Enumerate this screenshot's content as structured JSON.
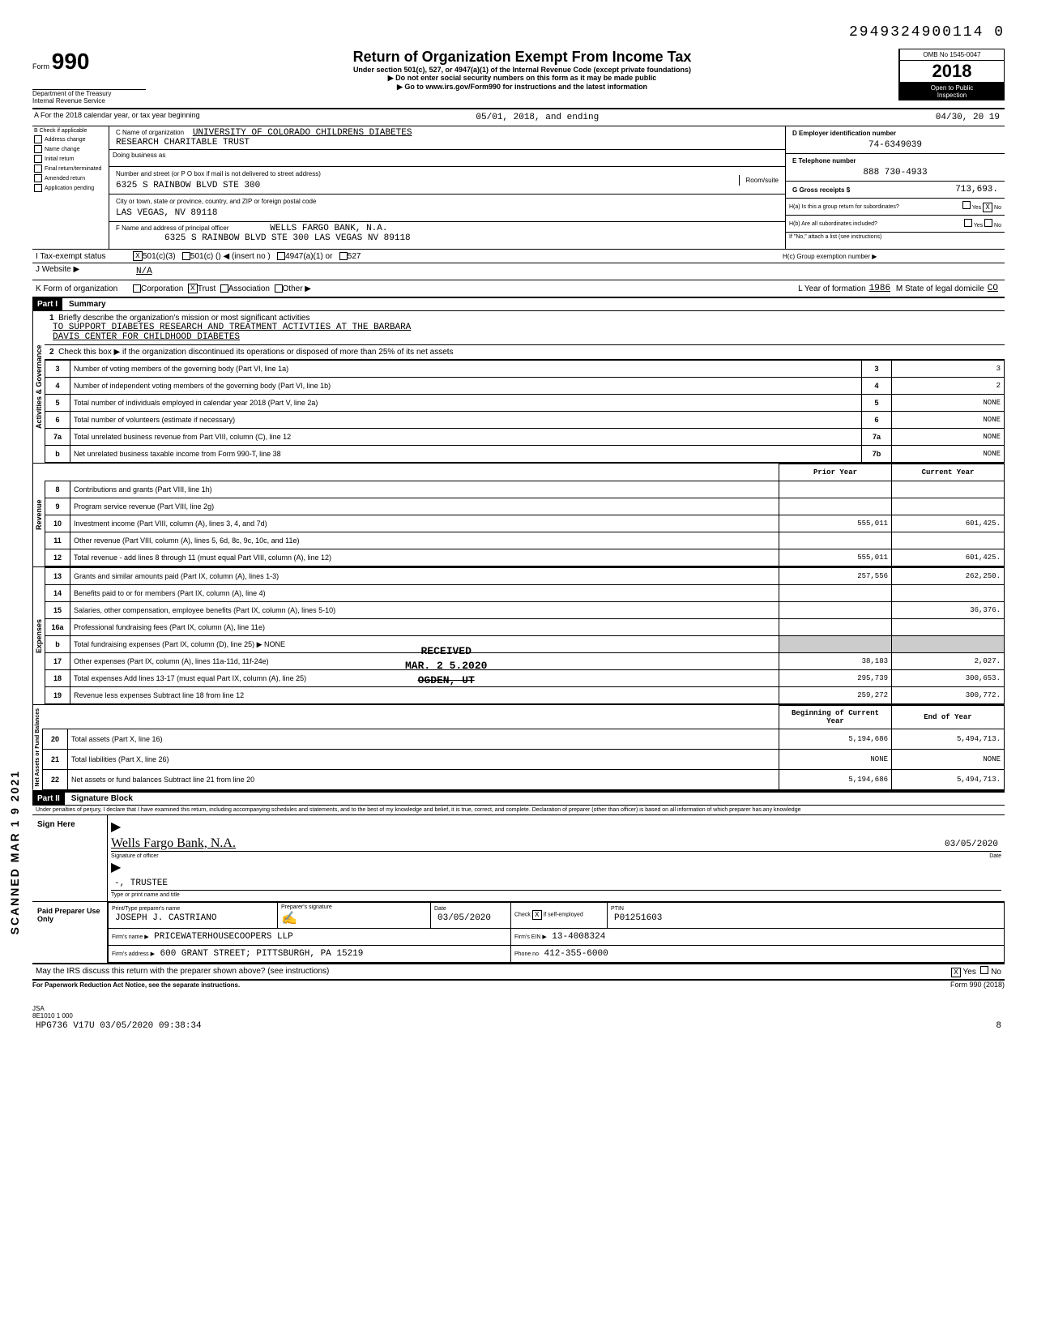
{
  "header_number": "2949324900114 0",
  "form": {
    "number": "990",
    "label": "Form",
    "dept1": "Department of the Treasury",
    "dept2": "Internal Revenue Service",
    "title": "Return of Organization Exempt From Income Tax",
    "sub1": "Under section 501(c), 527, or 4947(a)(1) of the Internal Revenue Code (except private foundations)",
    "sub2": "▶ Do not enter social security numbers on this form as it may be made public",
    "sub3": "▶ Go to www.irs.gov/Form990 for instructions and the latest information",
    "omb": "OMB No 1545-0047",
    "year": "2018",
    "open1": "Open to Public",
    "open2": "Inspection"
  },
  "line_a": {
    "label": "A  For the 2018 calendar year, or tax year beginning",
    "begin": "05/01, 2018, and ending",
    "end": "04/30, 20 19"
  },
  "block_b": {
    "label": "B   Check if applicable",
    "items": [
      "Address change",
      "Name change",
      "Initial return",
      "Final return/terminated",
      "Amended return",
      "Application pending"
    ]
  },
  "block_c": {
    "name_lbl": "C Name of organization",
    "name1": "UNIVERSITY OF COLORADO CHILDRENS DIABETES",
    "name2": "RESEARCH CHARITABLE TRUST",
    "dba_lbl": "Doing business as",
    "addr_lbl": "Number and street (or P O  box if mail is not delivered to street address)",
    "room_lbl": "Room/suite",
    "addr": "6325 S RAINBOW BLVD STE 300",
    "city_lbl": "City or town, state or province, country, and ZIP or foreign postal code",
    "city": "LAS VEGAS, NV  89118",
    "f_lbl": "F Name and address of principal officer",
    "f_name": "WELLS FARGO BANK, N.A.",
    "f_addr": "6325 S RAINBOW BLVD STE 300  LAS VEGAS  NV  89118"
  },
  "block_d": {
    "ein_lbl": "D Employer identification number",
    "ein": "74-6349039",
    "tel_lbl": "E Telephone number",
    "tel": "888 730-4933",
    "g_lbl": "G Gross receipts $",
    "g_val": "713,693.",
    "ha_lbl": "H(a) Is this a group return for subordinates?",
    "hb_lbl": "H(b) Are all subordinates included?",
    "hb_note": "If \"No,\" attach a list  (see instructions)",
    "hc_lbl": "H(c) Group exemption number ▶"
  },
  "line_i": {
    "label": "I      Tax-exempt status",
    "c3": "501(c)(3)",
    "c": "501(c) (",
    "insert": ") ◀  (insert no )",
    "a1": "4947(a)(1) or",
    "s527": "527"
  },
  "line_j": {
    "label": "J      Website ▶",
    "val": "N/A"
  },
  "line_k": {
    "label": "K     Form of organization",
    "corp": "Corporation",
    "trust": "Trust",
    "assoc": "Association",
    "other": "Other ▶",
    "l_lbl": "L Year of formation",
    "l_val": "1986",
    "m_lbl": "M State of legal domicile",
    "m_val": "CO"
  },
  "part1": {
    "label": "Part I",
    "title": "Summary"
  },
  "gov": {
    "label": "Activities & Governance",
    "l1_lbl": "Briefly describe the organization's mission or most significant activities",
    "l1_a": "TO SUPPORT DIABETES RESEARCH AND TREATMENT ACTIVTIES AT THE BARBARA",
    "l1_b": "DAVIS CENTER FOR CHILDHOOD DIABETES",
    "l2": "Check this box ▶        if the organization discontinued its operations or disposed of more than 25% of its net assets",
    "rows": [
      {
        "n": "3",
        "d": "Number of voting members of the governing body (Part VI, line 1a)",
        "b": "3",
        "v": "3"
      },
      {
        "n": "4",
        "d": "Number of independent voting members of the governing body (Part VI, line 1b)",
        "b": "4",
        "v": "2"
      },
      {
        "n": "5",
        "d": "Total number of individuals employed in calendar year 2018 (Part V, line 2a)",
        "b": "5",
        "v": "NONE"
      },
      {
        "n": "6",
        "d": "Total number of volunteers (estimate if necessary)",
        "b": "6",
        "v": "NONE"
      },
      {
        "n": "7a",
        "d": "Total unrelated business revenue from Part VIII, column (C), line 12",
        "b": "7a",
        "v": "NONE"
      },
      {
        "n": "b",
        "d": "Net unrelated business taxable income from Form 990-T, line 38",
        "b": "7b",
        "v": "NONE"
      }
    ]
  },
  "cols": {
    "prior": "Prior Year",
    "current": "Current Year"
  },
  "rev": {
    "label": "Revenue",
    "rows": [
      {
        "n": "8",
        "d": "Contributions and grants (Part VIII, line 1h)",
        "p": "",
        "c": ""
      },
      {
        "n": "9",
        "d": "Program service revenue (Part VIII, line 2g)",
        "p": "",
        "c": ""
      },
      {
        "n": "10",
        "d": "Investment income (Part VIII, column (A), lines 3, 4, and 7d)",
        "p": "555,011",
        "c": "601,425."
      },
      {
        "n": "11",
        "d": "Other revenue (Part VIII, column (A), lines 5, 6d, 8c, 9c, 10c, and 11e)",
        "p": "",
        "c": ""
      },
      {
        "n": "12",
        "d": "Total revenue - add lines 8 through 11 (must equal Part VIII, column (A), line 12)",
        "p": "555,011",
        "c": "601,425."
      }
    ]
  },
  "exp": {
    "label": "Expenses",
    "rows": [
      {
        "n": "13",
        "d": "Grants and similar amounts paid (Part IX, column (A), lines 1-3)",
        "p": "257,556",
        "c": "262,250."
      },
      {
        "n": "14",
        "d": "Benefits paid to or for members (Part IX, column (A), line 4)",
        "p": "",
        "c": ""
      },
      {
        "n": "15",
        "d": "Salaries, other compensation, employee benefits (Part IX, column (A), lines 5-10)",
        "p": "",
        "c": "36,376."
      },
      {
        "n": "16a",
        "d": "Professional fundraising fees (Part IX, column (A), line 11e)",
        "p": "",
        "c": ""
      },
      {
        "n": "b",
        "d": "Total fundraising expenses (Part IX, column (D), line 25) ▶                            NONE",
        "p": "—",
        "c": "—"
      },
      {
        "n": "17",
        "d": "Other expenses (Part IX, column (A), lines 11a-11d, 11f-24e)",
        "p": "38,183",
        "c": "2,027."
      },
      {
        "n": "18",
        "d": "Total expenses  Add lines 13-17 (must equal Part IX, column (A), line 25)",
        "p": "295,739",
        "c": "300,653."
      },
      {
        "n": "19",
        "d": "Revenue less expenses  Subtract line 18 from line 12",
        "p": "259,272",
        "c": "300,772."
      }
    ]
  },
  "net": {
    "label": "Net Assets or Fund Balances",
    "cols": {
      "begin": "Beginning of Current Year",
      "end": "End of Year"
    },
    "rows": [
      {
        "n": "20",
        "d": "Total assets (Part X, line 16)",
        "p": "5,194,686",
        "c": "5,494,713."
      },
      {
        "n": "21",
        "d": "Total liabilities (Part X, line 26)",
        "p": "NONE",
        "c": "NONE"
      },
      {
        "n": "22",
        "d": "Net assets or fund balances  Subtract line 21 from line 20",
        "p": "5,194,686",
        "c": "5,494,713."
      }
    ]
  },
  "part2": {
    "label": "Part II",
    "title": "Signature Block",
    "decl": "Under penalties of perjury, I declare that I have examined this return, including accompanying schedules and statements, and to the best of my knowledge and belief, it is true, correct, and complete. Declaration of preparer (other than officer) is based on all information of which preparer has any knowledge"
  },
  "sign": {
    "here": "Sign Here",
    "sig_lbl": "Signature of officer",
    "sig_name": "Wells Fargo Bank, N.A.",
    "date": "03/05/2020",
    "date_lbl": "Date",
    "title_lbl": "Type or print name and title",
    "title_val": "-, TRUSTEE"
  },
  "paid": {
    "label": "Paid Preparer Use Only",
    "name_lbl": "Print/Type preparer's name",
    "name": "JOSEPH J. CASTRIANO",
    "sig_lbl": "Preparer's signature",
    "date_lbl": "Date",
    "date": "03/05/2020",
    "check_lbl": "Check         if self-employed",
    "ptin_lbl": "PTIN",
    "ptin": "P01251603",
    "firm_lbl": "Firm's name  ▶",
    "firm": "PRICEWATERHOUSECOOPERS LLP",
    "ein_lbl": "Firm's EIN ▶",
    "ein": "13-4008324",
    "addr_lbl": "Firm's address ▶",
    "addr": "600 GRANT STREET; PITTSBURGH, PA  15219",
    "phone_lbl": "Phone no",
    "phone": "412-355-6000"
  },
  "may_irs": "May the IRS discuss this return with the preparer shown above? (see instructions)",
  "paperwork": "For Paperwork Reduction Act Notice, see the separate instructions.",
  "form_footer": "Form 990 (2018)",
  "jsa": {
    "l1": "JSA",
    "l2": "8E1010 1 000",
    "l3": "HPG736 V17U 03/05/2020 09:38:34",
    "page": "8"
  },
  "side_stamp": "SCANNED MAR 1 9 2021",
  "received": {
    "l1": "RECEIVED",
    "l2": "MAR. 2 5.2020",
    "l3": "OGDEN, UT"
  },
  "yes": "Yes",
  "no": "No",
  "x": "X"
}
